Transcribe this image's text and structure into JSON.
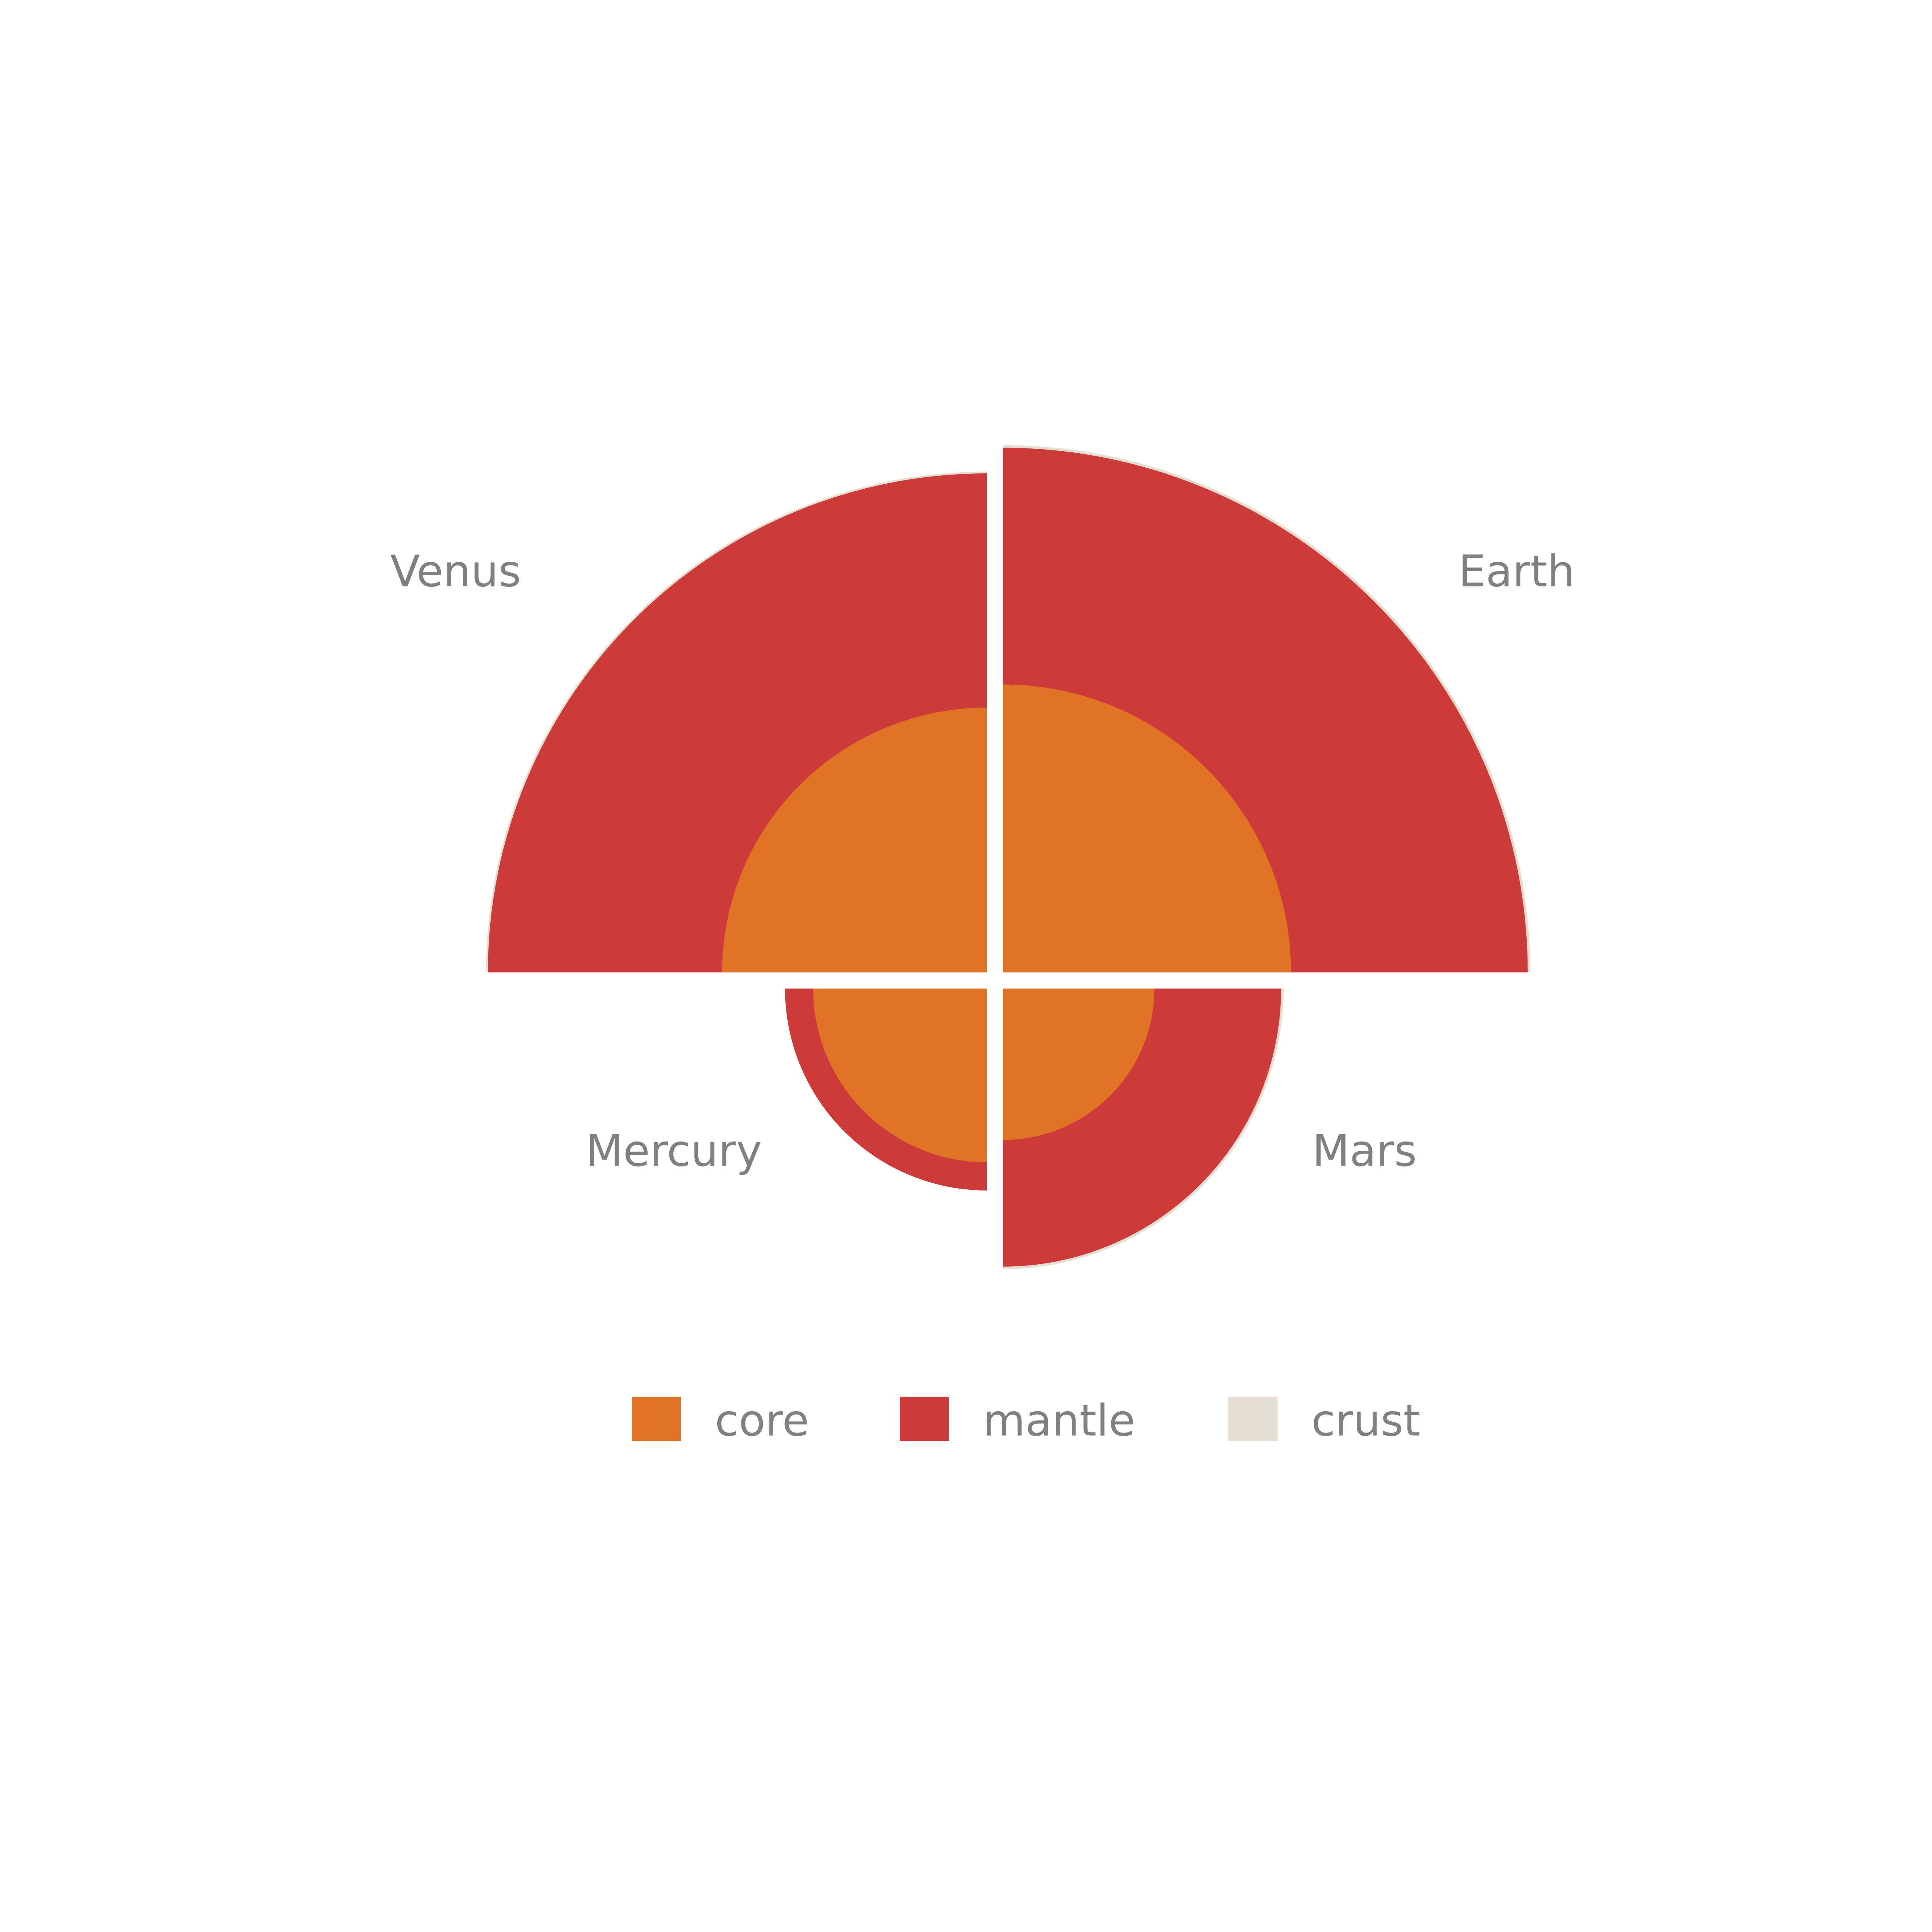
{
  "chart_data": {
    "type": "polar-area",
    "title": "",
    "layers": [
      "core",
      "mantle",
      "crust"
    ],
    "colors": {
      "core": "#E07424",
      "mantle": "#CC3A3A",
      "crust": "#E5DFD1",
      "label": "#808080",
      "background": "#FFFFFF"
    },
    "legend_position": "bottom",
    "units": "km",
    "planets": [
      {
        "name": "Venus",
        "quadrant": "upper-left",
        "core": 3200,
        "mantle": 6030,
        "crust": 6052
      },
      {
        "name": "Earth",
        "quadrant": "upper-right",
        "core": 3480,
        "mantle": 6340,
        "crust": 6371
      },
      {
        "name": "Mercury",
        "quadrant": "lower-left",
        "core": 2100,
        "mantle": 2440,
        "crust": 2440
      },
      {
        "name": "Mars",
        "quadrant": "lower-right",
        "core": 1830,
        "mantle": 3360,
        "crust": 3390
      }
    ]
  },
  "legend": [
    {
      "key": "core",
      "label": "core"
    },
    {
      "key": "mantle",
      "label": "mantle"
    },
    {
      "key": "crust",
      "label": "crust"
    }
  ]
}
